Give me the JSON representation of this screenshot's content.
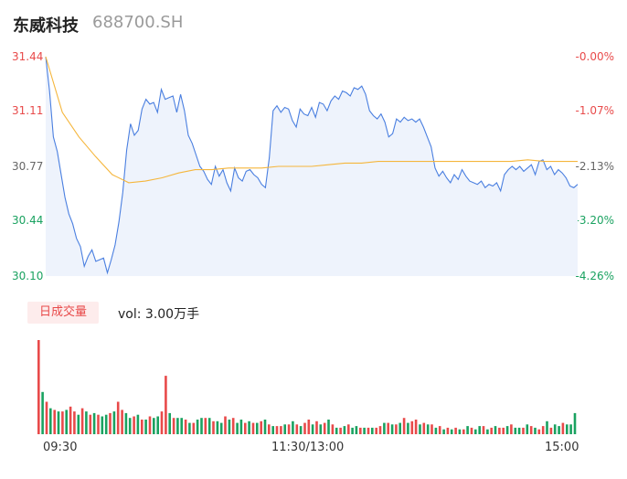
{
  "header": {
    "stock_name": "东威科技",
    "stock_code": "688700.SH"
  },
  "colors": {
    "up": "#e84a4a",
    "down": "#1aa260",
    "neutral": "#666666",
    "price_line": "#4a7fe0",
    "avg_line": "#f5b63c",
    "area_fill": "#eef3fc"
  },
  "volume_panel": {
    "badge": "日成交量",
    "vol_text": "vol: 3.00万手"
  },
  "chart_data": [
    {
      "type": "line",
      "y_ticks": [
        {
          "price": "31.44",
          "pct": "-0.00%",
          "color": "up"
        },
        {
          "price": "31.11",
          "pct": "-1.07%",
          "color": "up"
        },
        {
          "price": "30.77",
          "pct": "-2.13%",
          "color": "neutral"
        },
        {
          "price": "30.44",
          "pct": "-3.20%",
          "color": "down"
        },
        {
          "price": "30.10",
          "pct": "-4.26%",
          "color": "down"
        }
      ],
      "ylim": [
        30.1,
        31.44
      ],
      "x_ticks": [
        "09:30",
        "11:30/13:00",
        "15:00"
      ],
      "series": [
        {
          "values": [
            31.44,
            31.23,
            30.95,
            30.86,
            30.72,
            30.58,
            30.48,
            30.42,
            30.33,
            30.28,
            30.16,
            30.22,
            30.26,
            30.19,
            30.2,
            30.21,
            30.12,
            30.2,
            30.29,
            30.43,
            30.61,
            30.87,
            31.03,
            30.96,
            30.99,
            31.12,
            31.18,
            31.15,
            31.16,
            31.1,
            31.24,
            31.18,
            31.19,
            31.2,
            31.1,
            31.21,
            31.11,
            30.96,
            30.91,
            30.84,
            30.77,
            30.74,
            30.69,
            30.66,
            30.77,
            30.71,
            30.75,
            30.67,
            30.62,
            30.76,
            30.7,
            30.68,
            30.74,
            30.75,
            30.72,
            30.7,
            30.66,
            30.64,
            30.82,
            31.11,
            31.14,
            31.1,
            31.13,
            31.12,
            31.05,
            31.01,
            31.12,
            31.09,
            31.08,
            31.13,
            31.07,
            31.16,
            31.15,
            31.11,
            31.17,
            31.2,
            31.18,
            31.23,
            31.22,
            31.2,
            31.25,
            31.24,
            31.26,
            31.21,
            31.11,
            31.08,
            31.06,
            31.09,
            31.04,
            30.95,
            30.97,
            31.06,
            31.04,
            31.07,
            31.05,
            31.06,
            31.04,
            31.06,
            31.01,
            30.95,
            30.89,
            30.76,
            30.71,
            30.74,
            30.7,
            30.67,
            30.72,
            30.69,
            30.75,
            30.71,
            30.68,
            30.67,
            30.66,
            30.68,
            30.64,
            30.66,
            30.65,
            30.67,
            30.62,
            30.72,
            30.75,
            30.77,
            30.75,
            30.77,
            30.74,
            30.76,
            30.78,
            30.72,
            30.8,
            30.81,
            30.75,
            30.77,
            30.72,
            30.75,
            30.73,
            30.7,
            30.65,
            30.64,
            30.66
          ],
          "color": "price_line"
        },
        {
          "values": [
            31.44,
            31.1,
            30.95,
            30.83,
            30.72,
            30.67,
            30.68,
            30.7,
            30.73,
            30.75,
            30.75,
            30.76,
            30.76,
            30.76,
            30.77,
            30.77,
            30.77,
            30.78,
            30.79,
            30.79,
            30.8,
            30.8,
            30.8,
            30.8,
            30.8,
            30.8,
            30.8,
            30.8,
            30.8,
            30.81,
            30.8,
            30.8,
            30.8
          ],
          "color": "avg_line"
        }
      ]
    },
    {
      "type": "bar",
      "title": "日成交量",
      "values": [
        58,
        26,
        20,
        16,
        15,
        14,
        14,
        15,
        17,
        14,
        12,
        16,
        14,
        12,
        13,
        12,
        11,
        12,
        13,
        14,
        20,
        15,
        13,
        10,
        11,
        12,
        9,
        9,
        11,
        10,
        11,
        14,
        36,
        13,
        10,
        10,
        10,
        9,
        7,
        7,
        9,
        10,
        10,
        10,
        8,
        8,
        7,
        11,
        9,
        10,
        7,
        9,
        7,
        8,
        7,
        7,
        8,
        9,
        6,
        5,
        5,
        5,
        6,
        6,
        8,
        6,
        5,
        7,
        9,
        6,
        8,
        6,
        7,
        9,
        6,
        4,
        4,
        5,
        6,
        4,
        5,
        4,
        4,
        4,
        4,
        4,
        5,
        7,
        7,
        6,
        6,
        7,
        10,
        7,
        8,
        9,
        6,
        7,
        6,
        6,
        4,
        5,
        3,
        4,
        3,
        4,
        3,
        3,
        5,
        4,
        3,
        5,
        5,
        3,
        4,
        5,
        4,
        4,
        5,
        6,
        4,
        4,
        4,
        6,
        5,
        4,
        3,
        5,
        8,
        4,
        6,
        5,
        7,
        6,
        6,
        13
      ],
      "colors_up": [
        1,
        0,
        1,
        0,
        1,
        0,
        1,
        0,
        1,
        1,
        0,
        1,
        0,
        1,
        0,
        1,
        0,
        0,
        1,
        0,
        1,
        1,
        0,
        0,
        1,
        0,
        1,
        0,
        1,
        0,
        0,
        1,
        1,
        0,
        1,
        0,
        0,
        1,
        0,
        1,
        0,
        0,
        1,
        0,
        1,
        0,
        0,
        1,
        0,
        1,
        0,
        0,
        1,
        0,
        1,
        0,
        1,
        0,
        1,
        0,
        1,
        1,
        0,
        1,
        0,
        1,
        0,
        1,
        1,
        0,
        1,
        0,
        1,
        0,
        1,
        0,
        1,
        0,
        1,
        0,
        0,
        1,
        0,
        1,
        0,
        1,
        1,
        0,
        1,
        0,
        1,
        0,
        1,
        0,
        1,
        1,
        0,
        1,
        0,
        1,
        0,
        1,
        0,
        1,
        0,
        1,
        0,
        1,
        0,
        1,
        0,
        0,
        1,
        0,
        1,
        0,
        1,
        1,
        0,
        1,
        0,
        0,
        1,
        0,
        1,
        0,
        1,
        1,
        0,
        1,
        0,
        0,
        1,
        0,
        0,
        0
      ]
    }
  ]
}
